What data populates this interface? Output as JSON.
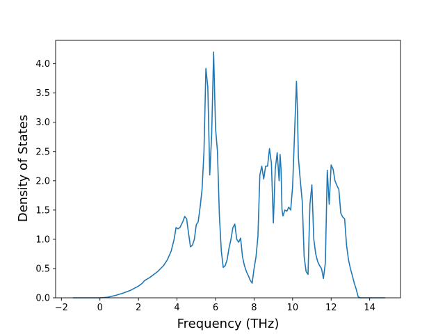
{
  "chart_data": {
    "type": "line",
    "title": "",
    "xlabel": "Frequency (THz)",
    "ylabel": "Density of States",
    "xlim": [
      -2.3,
      15.6
    ],
    "ylim": [
      0.0,
      4.4
    ],
    "xticks": [
      -2,
      0,
      2,
      4,
      6,
      8,
      10,
      12,
      14
    ],
    "xtick_labels": [
      "−2",
      "0",
      "2",
      "4",
      "6",
      "8",
      "10",
      "12",
      "14"
    ],
    "yticks": [
      0.0,
      0.5,
      1.0,
      1.5,
      2.0,
      2.5,
      3.0,
      3.5,
      4.0
    ],
    "ytick_labels": [
      "0.0",
      "0.5",
      "1.0",
      "1.5",
      "2.0",
      "2.5",
      "3.0",
      "3.5",
      "4.0"
    ],
    "grid": false,
    "legend": "none",
    "colors": {
      "line": "#1f77b4",
      "axes": "#000000",
      "background": "#ffffff"
    },
    "series": [
      {
        "x": [
          -1.4,
          -0.8,
          0.0,
          0.4,
          0.8,
          1.2,
          1.6,
          2.0,
          2.2,
          2.3,
          2.6,
          3.0,
          3.3,
          3.5,
          3.7,
          3.85,
          3.95,
          4.05,
          4.15,
          4.3,
          4.4,
          4.5,
          4.6,
          4.7,
          4.8,
          4.9,
          5.0,
          5.1,
          5.2,
          5.3,
          5.4,
          5.5,
          5.6,
          5.7,
          5.8,
          5.9,
          6.0,
          6.1,
          6.2,
          6.3,
          6.4,
          6.5,
          6.6,
          6.7,
          6.8,
          6.9,
          7.0,
          7.1,
          7.2,
          7.3,
          7.4,
          7.5,
          7.6,
          7.7,
          7.8,
          7.9,
          8.0,
          8.1,
          8.2,
          8.3,
          8.4,
          8.5,
          8.6,
          8.7,
          8.8,
          8.9,
          9.0,
          9.1,
          9.2,
          9.3,
          9.35,
          9.4,
          9.45,
          9.5,
          9.6,
          9.7,
          9.8,
          9.9,
          10.0,
          10.1,
          10.2,
          10.25,
          10.3,
          10.4,
          10.5,
          10.6,
          10.7,
          10.8,
          10.9,
          11.0,
          11.1,
          11.2,
          11.3,
          11.4,
          11.5,
          11.6,
          11.7,
          11.8,
          11.9,
          12.0,
          12.1,
          12.2,
          12.3,
          12.4,
          12.5,
          12.6,
          12.7,
          12.8,
          12.9,
          13.0,
          13.1,
          13.2,
          13.3,
          13.4,
          13.5,
          14.0,
          14.8
        ],
        "y": [
          0.0,
          0.0,
          0.0,
          0.01,
          0.04,
          0.08,
          0.13,
          0.2,
          0.25,
          0.29,
          0.35,
          0.45,
          0.55,
          0.65,
          0.8,
          1.0,
          1.2,
          1.18,
          1.2,
          1.3,
          1.39,
          1.35,
          1.1,
          0.87,
          0.9,
          1.0,
          1.25,
          1.3,
          1.55,
          1.85,
          2.5,
          3.92,
          3.6,
          2.1,
          2.8,
          4.2,
          2.9,
          2.5,
          1.4,
          0.8,
          0.52,
          0.55,
          0.65,
          0.85,
          1.0,
          1.2,
          1.26,
          1.0,
          0.95,
          1.02,
          0.7,
          0.55,
          0.45,
          0.38,
          0.3,
          0.25,
          0.5,
          0.7,
          1.05,
          2.1,
          2.25,
          2.03,
          2.25,
          2.25,
          2.55,
          2.3,
          1.28,
          2.2,
          2.48,
          2.0,
          2.45,
          2.2,
          1.5,
          1.4,
          1.5,
          1.48,
          1.55,
          1.5,
          1.9,
          2.8,
          3.7,
          3.2,
          2.4,
          2.0,
          1.65,
          0.7,
          0.45,
          0.4,
          1.6,
          1.93,
          1.0,
          0.75,
          0.62,
          0.55,
          0.5,
          0.33,
          0.6,
          2.18,
          1.6,
          2.27,
          2.2,
          2.0,
          1.92,
          1.85,
          1.45,
          1.38,
          1.35,
          0.9,
          0.65,
          0.5,
          0.38,
          0.25,
          0.15,
          0.02,
          0.0,
          0.0,
          0.0
        ]
      }
    ]
  }
}
